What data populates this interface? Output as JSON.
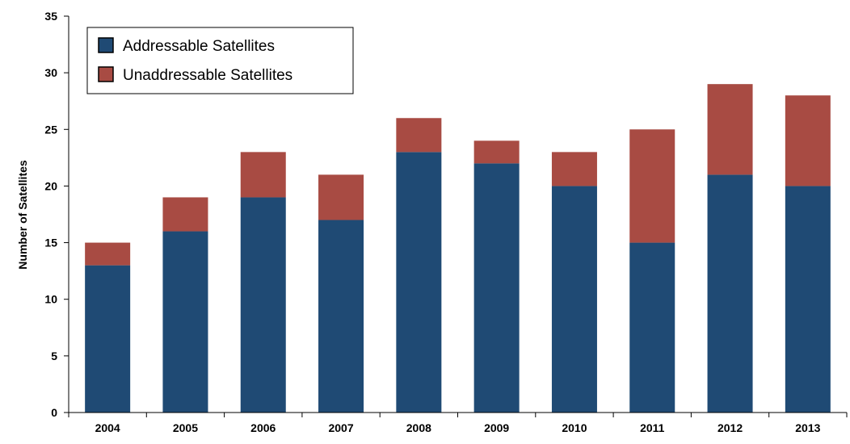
{
  "chart_data": {
    "type": "bar",
    "stacked": true,
    "categories": [
      "2004",
      "2005",
      "2006",
      "2007",
      "2008",
      "2009",
      "2010",
      "2011",
      "2012",
      "2013"
    ],
    "series": [
      {
        "name": "Addressable Satellites",
        "color": "#1f4a74",
        "values": [
          13,
          16,
          19,
          17,
          23,
          22,
          20,
          15,
          21,
          20
        ]
      },
      {
        "name": "Unaddressable Satellites",
        "color": "#a84b43",
        "values": [
          2,
          3,
          4,
          4,
          3,
          2,
          3,
          10,
          8,
          8
        ]
      }
    ],
    "xlabel": "",
    "ylabel": "Number of Satellites",
    "ylim": [
      0,
      35
    ],
    "yticks": [
      "0",
      "5",
      "10",
      "15",
      "20",
      "25",
      "30",
      "35"
    ],
    "grid": false,
    "legend": "top-left"
  }
}
